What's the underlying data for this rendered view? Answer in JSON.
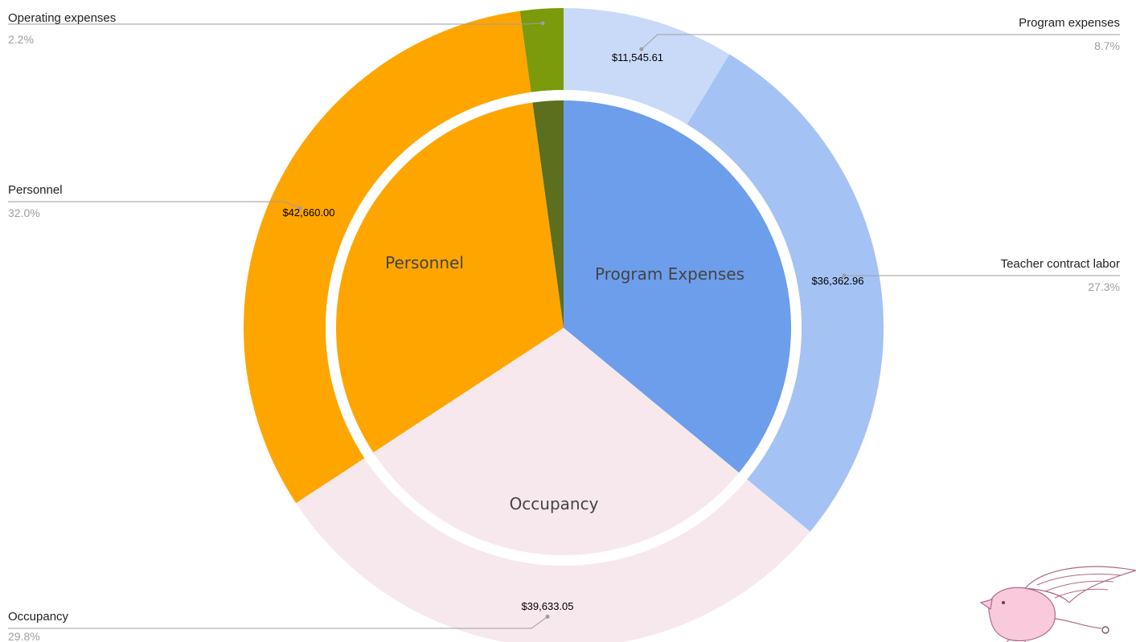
{
  "chart_data": {
    "type": "pie",
    "colors": {
      "program_expenses_inner": "#6d9eeb",
      "personnel": "#ffa500",
      "occupancy": "#f7e8ee",
      "operating_inner": "#5b6f1f",
      "operating_outer": "#7b9a0c",
      "program_outer": "#c9daf8",
      "teacher_outer": "#a4c2f4",
      "separator": "#ffffff"
    },
    "inner": {
      "slices": [
        {
          "label": "Program Expenses",
          "value": 47908.57,
          "color": "#6d9eeb"
        },
        {
          "label": "Occupancy",
          "value": 39633.05,
          "color": "#f7e8ee"
        },
        {
          "label": "Personnel",
          "value": 42660.0,
          "color": "#ffa500"
        },
        {
          "value": 2900.0,
          "color": "#5b6f1f"
        }
      ]
    },
    "outer": {
      "slices": [
        {
          "label": "Program expenses",
          "value": 11545.61,
          "value_label": "$11,545.61",
          "percent": "8.7%",
          "color": "#c9daf8"
        },
        {
          "label": "Teacher contract labor",
          "value": 36362.96,
          "value_label": "$36,362.96",
          "percent": "27.3%",
          "color": "#a4c2f4"
        },
        {
          "label": "Occupancy",
          "value": 39633.05,
          "value_label": "$39,633.05",
          "percent": "29.8%",
          "color": "#f7e8ee"
        },
        {
          "label": "Personnel",
          "value": 42660.0,
          "value_label": "$42,660.00",
          "percent": "32.0%",
          "color": "#ffa500"
        },
        {
          "label": "Operating expenses",
          "value": 2900.0,
          "value_label": "",
          "percent": "2.2%",
          "color": "#7b9a0c"
        }
      ]
    }
  },
  "watermark": {
    "icon": "flying-pig-icon",
    "color": "#f4b6cf"
  }
}
